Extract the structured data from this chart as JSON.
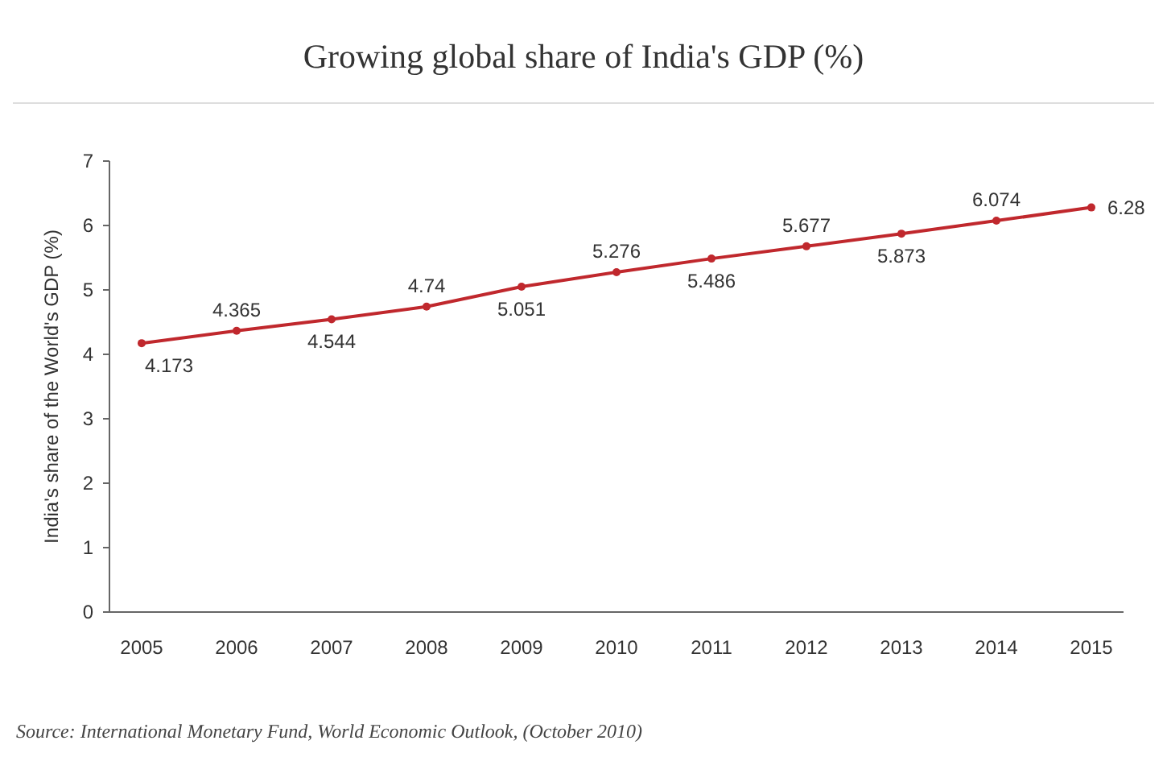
{
  "chart_data": {
    "type": "line",
    "title": "Growing global share of India's GDP (%)",
    "ylabel": "India's share of the World's GDP (%)",
    "categories": [
      "2005",
      "2006",
      "2007",
      "2008",
      "2009",
      "2010",
      "2011",
      "2012",
      "2013",
      "2014",
      "2015"
    ],
    "series": [
      {
        "color": "#c0282d",
        "values": [
          4.173,
          4.365,
          4.544,
          4.74,
          5.051,
          5.276,
          5.486,
          5.677,
          5.873,
          6.074,
          6.28
        ]
      }
    ],
    "ylim": [
      0,
      7
    ],
    "yticks": [
      0,
      1,
      2,
      3,
      4,
      5,
      6,
      7
    ],
    "grid": false,
    "marker": "circle",
    "line_style": "solid",
    "data_labels": true,
    "annotations": [
      "Source: International Monetary Fund, World Economic Outlook, (October 2010)"
    ]
  }
}
